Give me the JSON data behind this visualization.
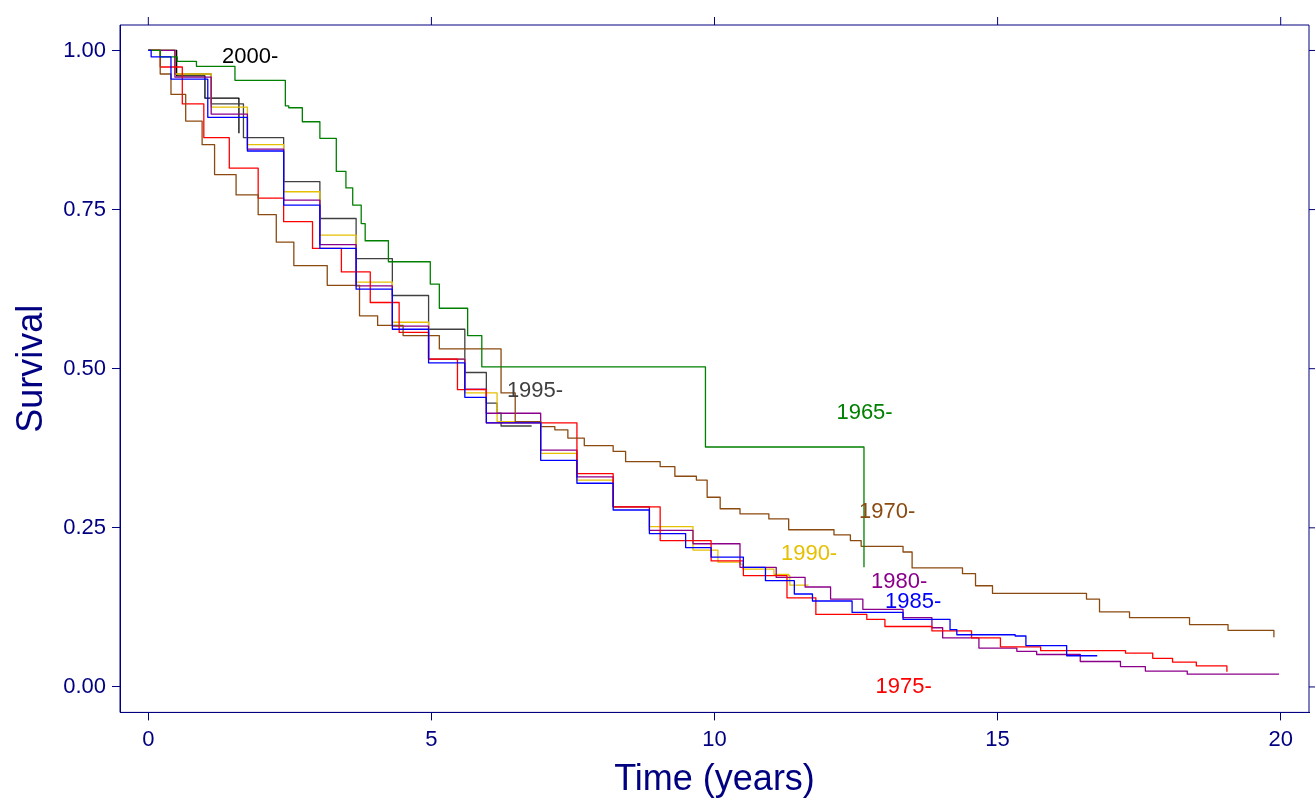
{
  "chart_data": {
    "type": "step",
    "xlabel": "Time (years)",
    "ylabel": "Survival",
    "xlim": [
      -0.5,
      20.5
    ],
    "xticks": [
      0,
      5,
      10,
      15,
      20
    ],
    "ylim": [
      -0.04,
      1.04
    ],
    "yticks": [
      {
        "value": 0,
        "label": "0.00"
      },
      {
        "value": 0.25,
        "label": "0.25"
      },
      {
        "value": 0.5,
        "label": "0.50"
      },
      {
        "value": 0.75,
        "label": "0.75"
      },
      {
        "value": 1,
        "label": "1.00"
      }
    ],
    "grid": false,
    "legend": false,
    "series": [
      {
        "name": "1965-",
        "color": "#008000",
        "x": [
          0,
          0.21,
          0.51,
          0.85,
          1.53,
          2.42,
          2.48,
          2.72,
          3.03,
          3.32,
          3.49,
          3.61,
          3.76,
          3.83,
          4.24,
          4.98,
          5.14,
          5.64,
          5.89,
          9.84,
          12.64
        ],
        "values": [
          1,
          0.99,
          0.983,
          0.975,
          0.953,
          0.913,
          0.91,
          0.888,
          0.862,
          0.81,
          0.784,
          0.757,
          0.728,
          0.701,
          0.668,
          0.633,
          0.595,
          0.552,
          0.503,
          0.377,
          0.188
        ]
      },
      {
        "name": "1970-",
        "color": "#8b4a10",
        "x": [
          0,
          0.21,
          0.4,
          0.66,
          0.95,
          1.17,
          1.55,
          1.94,
          2.26,
          2.57,
          3.16,
          3.73,
          4.05,
          4.5,
          5.14,
          6.23,
          6.48,
          6.93,
          7.18,
          7.41,
          7.7,
          8.21,
          8.43,
          9.04,
          9.3,
          9.68,
          9.87,
          10.1,
          10.45,
          10.96,
          11.31,
          12.11,
          12.4,
          12.59,
          13.33,
          13.49,
          14.38,
          14.61,
          14.91,
          16.57,
          16.8,
          17.33,
          18.39,
          19.07,
          19.88
        ],
        "values": [
          1,
          0.963,
          0.931,
          0.889,
          0.852,
          0.805,
          0.773,
          0.742,
          0.699,
          0.662,
          0.631,
          0.583,
          0.568,
          0.552,
          0.531,
          0.462,
          0.417,
          0.409,
          0.404,
          0.391,
          0.379,
          0.37,
          0.354,
          0.346,
          0.331,
          0.325,
          0.298,
          0.28,
          0.272,
          0.264,
          0.247,
          0.239,
          0.23,
          0.221,
          0.212,
          0.187,
          0.178,
          0.159,
          0.147,
          0.138,
          0.118,
          0.109,
          0.098,
          0.089,
          0.078
        ]
      },
      {
        "name": "1975-",
        "color": "#ff0000",
        "x": [
          0,
          0.21,
          0.6,
          0.98,
          1.43,
          1.94,
          2.39,
          2.9,
          3.41,
          3.92,
          4.43,
          4.95,
          5.46,
          5.97,
          7.57,
          8.21,
          9.04,
          9.94,
          10.51,
          11.28,
          11.79,
          12.69,
          13.01,
          13.84,
          14.54,
          15.05,
          15.76,
          17.26,
          17.74,
          18.09,
          18.51,
          19.05
        ],
        "values": [
          1,
          0.974,
          0.916,
          0.863,
          0.815,
          0.768,
          0.731,
          0.689,
          0.652,
          0.604,
          0.557,
          0.515,
          0.467,
          0.415,
          0.335,
          0.283,
          0.23,
          0.198,
          0.175,
          0.14,
          0.114,
          0.106,
          0.095,
          0.088,
          0.077,
          0.063,
          0.057,
          0.053,
          0.045,
          0.039,
          0.033,
          0.024
        ]
      },
      {
        "name": "1980-",
        "color": "#8b008b",
        "x": [
          0,
          0.47,
          1.11,
          1.75,
          2.39,
          3.03,
          3.67,
          4.31,
          4.95,
          5.59,
          5.97,
          6.93,
          7.57,
          8.21,
          8.85,
          9.62,
          10.45,
          11.09,
          11.6,
          12.05,
          12.62,
          13.33,
          13.84,
          14.03,
          14.67,
          15.34,
          15.69,
          16.46,
          17.17,
          17.61,
          18.35,
          19.97
        ],
        "values": [
          1,
          0.958,
          0.9,
          0.845,
          0.765,
          0.695,
          0.63,
          0.567,
          0.515,
          0.468,
          0.43,
          0.372,
          0.33,
          0.283,
          0.246,
          0.225,
          0.188,
          0.172,
          0.157,
          0.138,
          0.122,
          0.109,
          0.093,
          0.077,
          0.061,
          0.056,
          0.051,
          0.04,
          0.032,
          0.025,
          0.02,
          0.02
        ]
      },
      {
        "name": "1985-",
        "color": "#0000ff",
        "x": [
          0,
          0.05,
          0.4,
          1.05,
          1.75,
          2.39,
          3.03,
          3.67,
          4.31,
          4.95,
          5.59,
          5.97,
          6.93,
          7.57,
          8.21,
          8.85,
          9.49,
          9.94,
          10.51,
          10.9,
          11.41,
          11.73,
          12.43,
          13.33,
          14.16,
          14.28,
          15.31,
          15.5,
          16.2,
          16.22,
          16.76
        ],
        "values": [
          1,
          0.99,
          0.955,
          0.895,
          0.842,
          0.757,
          0.689,
          0.625,
          0.562,
          0.509,
          0.455,
          0.415,
          0.356,
          0.32,
          0.278,
          0.241,
          0.219,
          0.204,
          0.188,
          0.167,
          0.146,
          0.135,
          0.117,
          0.106,
          0.09,
          0.082,
          0.08,
          0.065,
          0.065,
          0.049,
          0.049
        ]
      },
      {
        "name": "1990-",
        "color": "#e6c000",
        "x": [
          0,
          0.47,
          1.11,
          1.75,
          2.39,
          3.03,
          3.67,
          4.31,
          4.95,
          5.59,
          6.16,
          6.93,
          7.57,
          8.21,
          8.85,
          9.62,
          10.06,
          10.45,
          10.5,
          11.03,
          11.05,
          11.31,
          11.33,
          11.66
        ],
        "values": [
          1,
          0.963,
          0.911,
          0.852,
          0.778,
          0.71,
          0.636,
          0.573,
          0.515,
          0.462,
          0.417,
          0.367,
          0.325,
          0.283,
          0.252,
          0.215,
          0.196,
          0.193,
          0.185,
          0.185,
          0.177,
          0.175,
          0.16,
          0.16
        ]
      },
      {
        "name": "1995-",
        "color": "#404040",
        "x": [
          0,
          0.47,
          1.11,
          1.68,
          2.39,
          3.03,
          3.67,
          4.31,
          4.95,
          5.59,
          5.97,
          6.16,
          6.23,
          6.77
        ],
        "values": [
          1,
          0.963,
          0.916,
          0.863,
          0.794,
          0.736,
          0.673,
          0.615,
          0.562,
          0.494,
          0.446,
          0.43,
          0.41,
          0.41
        ]
      },
      {
        "name": "2000-",
        "color": "#000000",
        "x": [
          0,
          0.5,
          1,
          1.6
        ],
        "values": [
          1,
          0.96,
          0.925,
          0.87
        ]
      }
    ]
  }
}
